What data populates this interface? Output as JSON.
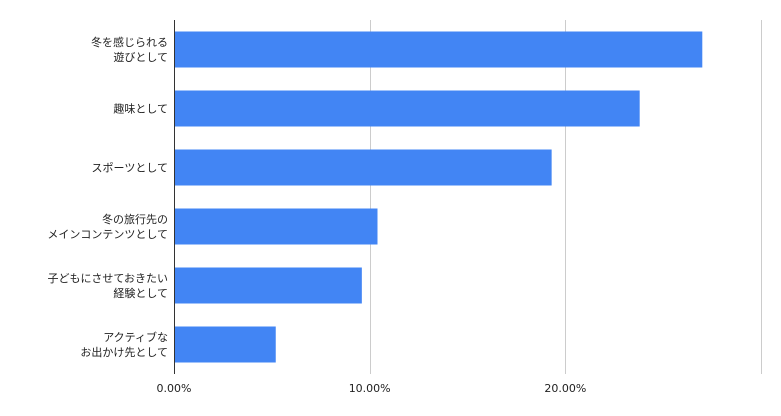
{
  "chart_data": {
    "type": "bar",
    "orientation": "horizontal",
    "categories": [
      [
        "冬を感じられる",
        "遊びとして"
      ],
      [
        "趣味として"
      ],
      [
        "スポーツとして"
      ],
      [
        "冬の旅行先の",
        "メインコンテンツとして"
      ],
      [
        "子どもにさせておきたい",
        "経験として"
      ],
      [
        "アクティブな",
        "お出かけ先として"
      ]
    ],
    "values": [
      27.0,
      23.8,
      19.3,
      10.4,
      9.6,
      5.2
    ],
    "xlim": [
      0,
      30
    ],
    "ticks": [
      {
        "value": 0,
        "label": "0.00%"
      },
      {
        "value": 10,
        "label": "10.00%"
      },
      {
        "value": 20,
        "label": "20.00%"
      }
    ],
    "gridlines": [
      10,
      20,
      30
    ],
    "grid": true,
    "legend": "none",
    "bar_color": "#4285F4",
    "title": "",
    "xlabel": "",
    "ylabel": ""
  }
}
